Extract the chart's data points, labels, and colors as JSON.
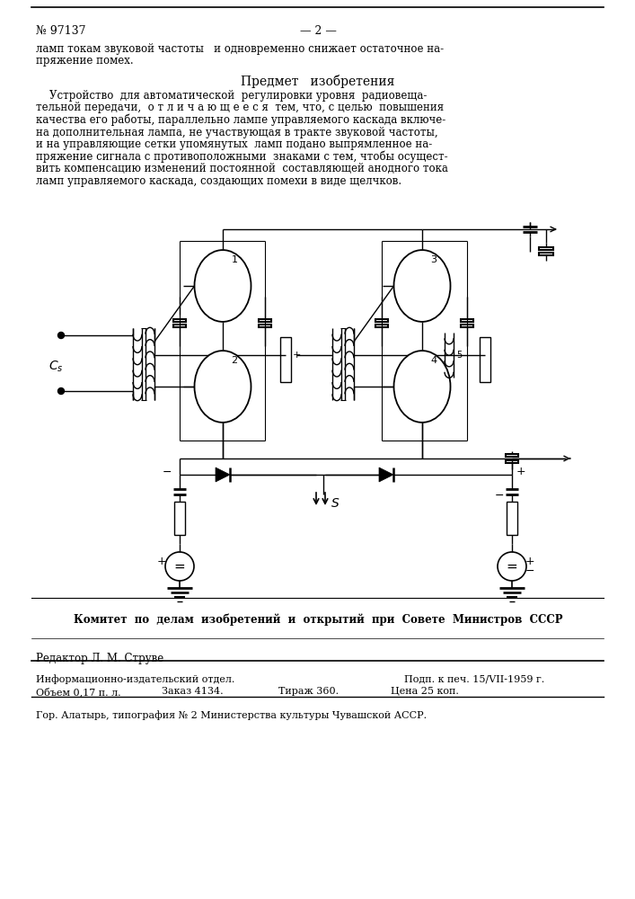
{
  "bg_color": "#ffffff",
  "patent_number": "№ 97137",
  "page_number": "— 2 —",
  "top_text_line1": "ламп токам звуковой частоты   и одновременно снижает остаточное на-",
  "top_text_line2": "пряжение помех.",
  "section_title": "Предмет   изобретения",
  "body_lines": [
    "    Устройство  для автоматической  регулировки уровня  радиовеща-",
    "тельной передачи,  о т л и ч а ю щ е е с я  тем, что, с целью  повышения",
    "качества его работы, параллельно лампе управляемого каскада включе-",
    "на дополнительная лампа, не участвующая в тракте звуковой частоты,",
    "и на управляющие сетки упомянутых  ламп подано выпрямленное на-",
    "пряжение сигнала с противоположными  знаками с тем, чтобы осущест-",
    "вить компенсацию изменений постоянной  составляющей анодного тока",
    "ламп управляемого каскада, создающих помехи в виде щелчков."
  ],
  "committee_text": "Комитет  по  делам  изобретений  и  открытий  при  Совете  Министров  СССР",
  "editor_text": "Редактор Л. М. Струве",
  "footer_line1_left": "Информационно-издательский отдел.",
  "footer_line1_right": "Подп. к печ. 15/VII-1959 г.",
  "footer_line2_col1": "Объем 0,17 п. л.",
  "footer_line2_col2": "Заказ 4134.",
  "footer_line2_col3": "Тираж 360.",
  "footer_line2_col4": "Цена 25 коп.",
  "footer_last": "Гор. Алатырь, типография № 2 Министерства культуры Чувашской АССР."
}
